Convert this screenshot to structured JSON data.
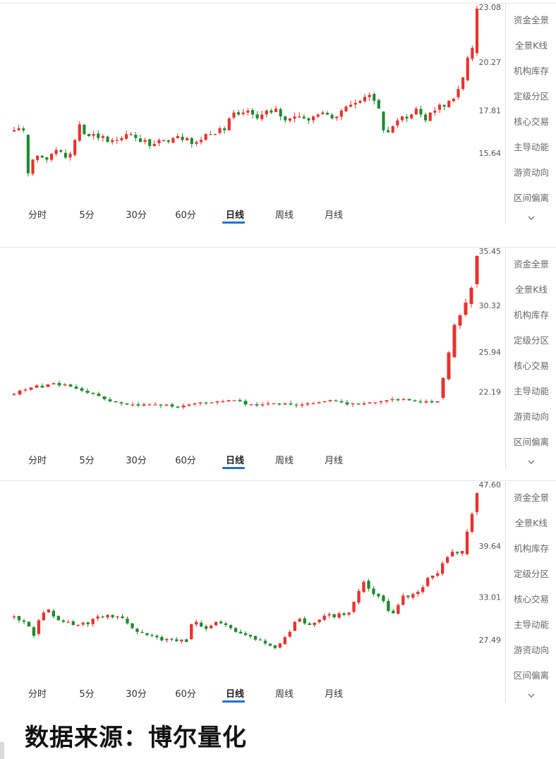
{
  "tabs": [
    "分时",
    "5分",
    "30分",
    "60分",
    "日线",
    "周线",
    "月线"
  ],
  "active_tab": "日线",
  "sidebar": [
    "资金全景",
    "全景K线",
    "机构库存",
    "定级分区",
    "核心交易",
    "主导动能",
    "游资动向",
    "区间偏离"
  ],
  "source_label": "数据来源：博尔量化",
  "colors": {
    "up": "#e8322c",
    "down": "#1e8a2e",
    "accent": "#1f6fd6",
    "grid": "#e6e6e6"
  },
  "icons": {
    "expand": "chevron-down-icon"
  },
  "chart_data": [
    {
      "type": "candlestick",
      "y_ticks": [
        "23.08",
        "20.27",
        "17.81",
        "15.64"
      ],
      "ylim": [
        13.8,
        23.08
      ],
      "closes": [
        16.8,
        16.9,
        16.8,
        14.6,
        15.3,
        15.5,
        15.4,
        15.3,
        15.6,
        15.8,
        15.7,
        15.4,
        15.6,
        16.3,
        17.1,
        16.6,
        16.5,
        16.6,
        16.4,
        16.5,
        16.2,
        16.3,
        16.3,
        16.4,
        16.6,
        16.6,
        16.4,
        16.2,
        16.3,
        16.0,
        16.1,
        16.3,
        16.3,
        16.2,
        16.4,
        16.5,
        16.3,
        16.4,
        16.1,
        16.2,
        16.3,
        16.6,
        16.6,
        16.6,
        16.9,
        16.8,
        17.4,
        17.7,
        17.6,
        17.7,
        17.8,
        17.6,
        17.4,
        17.6,
        17.8,
        17.7,
        17.9,
        17.5,
        17.3,
        17.4,
        17.5,
        17.5,
        17.4,
        17.3,
        17.5,
        17.6,
        17.7,
        17.6,
        17.4,
        17.5,
        17.8,
        18.0,
        18.1,
        18.2,
        18.3,
        18.5,
        18.6,
        18.3,
        17.9,
        16.8,
        16.7,
        17.0,
        17.3,
        17.5,
        17.4,
        17.6,
        17.9,
        17.6,
        17.3,
        17.7,
        17.8,
        18.1,
        18.0,
        18.3,
        18.4,
        18.9,
        19.5,
        20.5,
        21.0,
        23.0
      ]
    },
    {
      "type": "candlestick",
      "y_ticks": [
        "35.45",
        "30.32",
        "25.94",
        "22.19"
      ],
      "ylim": [
        18.3,
        35.45
      ],
      "closes": [
        22.0,
        22.3,
        22.4,
        22.6,
        22.8,
        22.6,
        22.9,
        23.0,
        22.8,
        22.9,
        22.7,
        22.5,
        22.3,
        22.1,
        22.0,
        21.8,
        21.5,
        21.3,
        21.2,
        21.1,
        21.0,
        21.0,
        20.9,
        21.0,
        21.0,
        21.0,
        20.9,
        21.0,
        20.8,
        20.7,
        20.9,
        21.0,
        21.1,
        21.2,
        21.1,
        21.2,
        21.3,
        21.3,
        21.4,
        21.4,
        21.3,
        21.0,
        21.0,
        20.9,
        21.0,
        21.1,
        21.1,
        21.0,
        21.1,
        21.0,
        20.9,
        21.0,
        21.1,
        21.1,
        21.2,
        21.3,
        21.4,
        21.3,
        21.2,
        21.0,
        21.1,
        21.0,
        21.1,
        21.2,
        21.2,
        21.3,
        21.4,
        21.5,
        21.4,
        21.5,
        21.4,
        21.3,
        21.2,
        21.3,
        21.2,
        21.3,
        23.5,
        25.9,
        28.5,
        29.4,
        30.6,
        32.0,
        35.0
      ]
    },
    {
      "type": "candlestick",
      "y_ticks": [
        "47.60",
        "39.64",
        "33.01",
        "27.49"
      ],
      "ylim": [
        24.0,
        47.6
      ],
      "closes": [
        30.5,
        30.0,
        29.8,
        29.2,
        28.0,
        30.0,
        31.0,
        31.4,
        30.5,
        30.0,
        29.8,
        29.8,
        29.4,
        29.4,
        29.7,
        29.5,
        30.2,
        30.5,
        30.4,
        30.7,
        30.4,
        30.5,
        30.3,
        29.6,
        29.0,
        28.5,
        28.4,
        28.1,
        28.0,
        27.8,
        27.4,
        27.6,
        27.5,
        27.3,
        27.5,
        27.2,
        29.5,
        29.8,
        29.2,
        28.9,
        29.3,
        29.8,
        29.6,
        29.4,
        29.0,
        28.5,
        28.3,
        28.1,
        27.9,
        27.5,
        27.4,
        27.0,
        26.7,
        26.4,
        27.0,
        27.8,
        28.5,
        29.8,
        30.2,
        29.6,
        29.4,
        29.7,
        30.1,
        30.6,
        30.8,
        30.4,
        30.9,
        30.7,
        31.0,
        32.4,
        33.8,
        35.0,
        34.1,
        33.4,
        33.1,
        32.5,
        31.2,
        30.9,
        32.0,
        33.2,
        33.0,
        33.4,
        33.7,
        34.3,
        35.5,
        35.8,
        36.1,
        37.4,
        38.2,
        38.9,
        38.7,
        39.0,
        41.5,
        43.8,
        46.5
      ]
    }
  ]
}
